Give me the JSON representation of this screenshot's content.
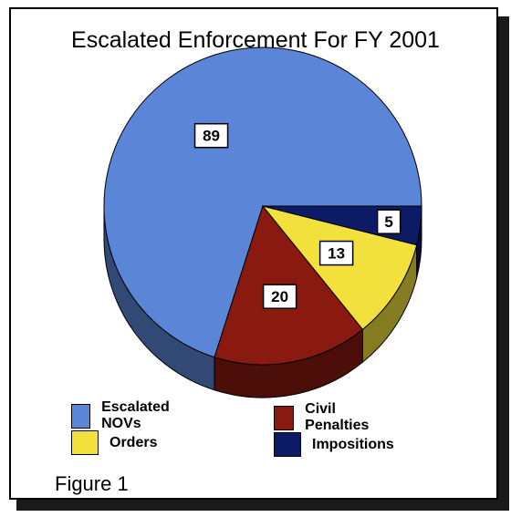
{
  "chart_data": {
    "type": "pie",
    "title": "Escalated Enforcement For FY 2001",
    "categories": [
      "Escalated NOVs",
      "Civil Penalties",
      "Orders",
      "Impositions"
    ],
    "values": [
      89,
      20,
      13,
      5
    ],
    "data_labels": [
      "89",
      "20",
      "13",
      "5"
    ],
    "colors": [
      "#5b85d6",
      "#8a1a10",
      "#f2e03c",
      "#0d1a66"
    ],
    "style": "3d",
    "legend_position": "bottom"
  },
  "figure_label": "Figure 1"
}
